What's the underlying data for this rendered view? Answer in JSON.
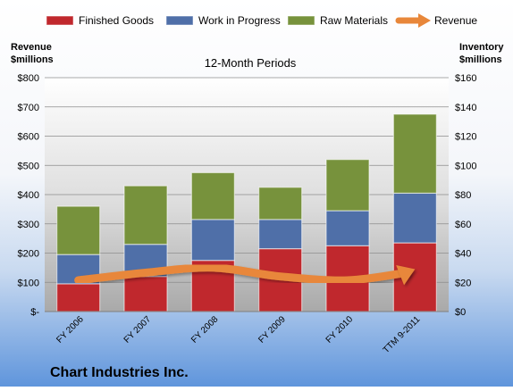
{
  "chart_data": {
    "type": "bar",
    "stacked": true,
    "title": "12-Month Periods",
    "footer_title": "Chart Industries Inc.",
    "left_axis_label": [
      "Revenue",
      "$millions"
    ],
    "right_axis_label": [
      "Inventory",
      "$millions"
    ],
    "categories": [
      "FY 2006",
      "FY 2007",
      "FY 2008",
      "FY 2009",
      "FY 2010",
      "TTM 9-2011"
    ],
    "ylim_left": [
      0,
      800
    ],
    "ylim_right": [
      0,
      160
    ],
    "left_ticks": [
      {
        "v": 0,
        "label": "$-"
      },
      {
        "v": 100,
        "label": "$100"
      },
      {
        "v": 200,
        "label": "$200"
      },
      {
        "v": 300,
        "label": "$300"
      },
      {
        "v": 400,
        "label": "$400"
      },
      {
        "v": 500,
        "label": "$500"
      },
      {
        "v": 600,
        "label": "$600"
      },
      {
        "v": 700,
        "label": "$700"
      },
      {
        "v": 800,
        "label": "$800"
      }
    ],
    "right_ticks": [
      {
        "v": 0,
        "label": "$0"
      },
      {
        "v": 20,
        "label": "$20"
      },
      {
        "v": 40,
        "label": "$40"
      },
      {
        "v": 60,
        "label": "$60"
      },
      {
        "v": 80,
        "label": "$80"
      },
      {
        "v": 100,
        "label": "$100"
      },
      {
        "v": 120,
        "label": "$120"
      },
      {
        "v": 140,
        "label": "$140"
      },
      {
        "v": 160,
        "label": "$160"
      }
    ],
    "series": [
      {
        "name": "Finished Goods",
        "axis": "right",
        "color": "#c0282d",
        "values": [
          19,
          24,
          35,
          43,
          45,
          47
        ]
      },
      {
        "name": "Work in Progress",
        "axis": "right",
        "color": "#4f6fa8",
        "values": [
          20,
          22,
          28,
          20,
          24,
          34
        ]
      },
      {
        "name": "Raw Materials",
        "axis": "right",
        "color": "#77923c",
        "values": [
          33,
          40,
          32,
          22,
          35,
          54
        ]
      }
    ],
    "line_series": {
      "name": "Revenue",
      "axis": "left",
      "color": "#e8873a",
      "values": [
        107,
        133,
        150,
        120,
        107,
        145
      ]
    },
    "grid": true,
    "legend_position": "top"
  }
}
